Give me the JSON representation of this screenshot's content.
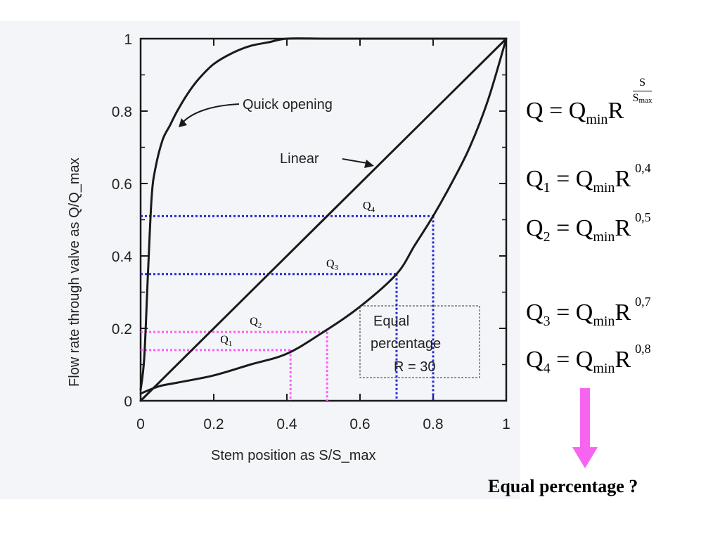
{
  "chart_data": {
    "type": "line",
    "xlabel": "Stem position as S/S_max",
    "ylabel": "Flow rate through valve as Q/Q_max",
    "xlim": [
      0,
      1
    ],
    "ylim": [
      0,
      1
    ],
    "x_ticks": [
      "0",
      "0.2",
      "0.4",
      "0.6",
      "0.8",
      "1"
    ],
    "y_ticks": [
      "0",
      "0.2",
      "0.4",
      "0.6",
      "0.8",
      "1"
    ],
    "grid": false,
    "series": [
      {
        "name": "Quick opening",
        "x": [
          0,
          0.01,
          0.02,
          0.03,
          0.04,
          0.06,
          0.08,
          0.1,
          0.13,
          0.16,
          0.2,
          0.25,
          0.3,
          0.35,
          0.4,
          0.5,
          0.6,
          0.8,
          1.0
        ],
        "y": [
          0.03,
          0.12,
          0.35,
          0.56,
          0.64,
          0.72,
          0.76,
          0.8,
          0.85,
          0.89,
          0.93,
          0.96,
          0.98,
          0.99,
          1.0,
          1.0,
          1.0,
          1.0,
          1.0
        ]
      },
      {
        "name": "Linear",
        "x": [
          0,
          1
        ],
        "y": [
          0,
          1
        ]
      },
      {
        "name": "Equal percentage R = 30",
        "x": [
          0,
          0.05,
          0.1,
          0.2,
          0.3,
          0.4,
          0.5,
          0.6,
          0.7,
          0.75,
          0.8,
          0.85,
          0.9,
          0.95,
          1.0
        ],
        "y": [
          0.02,
          0.04,
          0.05,
          0.07,
          0.1,
          0.13,
          0.19,
          0.26,
          0.35,
          0.43,
          0.51,
          0.6,
          0.7,
          0.83,
          1.0
        ]
      }
    ],
    "series_labels": {
      "quick": "Quick opening",
      "linear": "Linear",
      "equal_l1": "Equal",
      "equal_l2": "percentage",
      "equal_l3": "R = 30"
    },
    "markers": [
      {
        "label": "Q",
        "sub": "1",
        "x": 0.41,
        "y": 0.14,
        "color": "#ff5ef5"
      },
      {
        "label": "Q",
        "sub": "2",
        "x": 0.51,
        "y": 0.19,
        "color": "#ff5ef5"
      },
      {
        "label": "Q",
        "sub": "3",
        "x": 0.7,
        "y": 0.35,
        "color": "#2a2ad6"
      },
      {
        "label": "Q",
        "sub": "4",
        "x": 0.8,
        "y": 0.51,
        "color": "#2a2ad6"
      }
    ]
  },
  "formulas": {
    "general": {
      "lhs": "Q",
      "eq": "=",
      "base": "Q",
      "base_sub": "min",
      "r": "R",
      "exp_num": "S",
      "exp_den": "S",
      "exp_den_sub": "max"
    },
    "q1": {
      "lhs": "Q",
      "lhs_sub": "1",
      "eq": "=",
      "base": "Q",
      "base_sub": "min",
      "r": "R",
      "exp": "0,4"
    },
    "q2": {
      "lhs": "Q",
      "lhs_sub": "2",
      "eq": "=",
      "base": "Q",
      "base_sub": "min",
      "r": "R",
      "exp": "0,5"
    },
    "q3": {
      "lhs": "Q",
      "lhs_sub": "3",
      "eq": "=",
      "base": "Q",
      "base_sub": "min",
      "r": "R",
      "exp": "0,7"
    },
    "q4": {
      "lhs": "Q",
      "lhs_sub": "4",
      "eq": "=",
      "base": "Q",
      "base_sub": "min",
      "r": "R",
      "exp": "0,8"
    }
  },
  "caption": "Equal percentage ?",
  "colors": {
    "pink": "#ff5ef5",
    "blue": "#2a2ad6",
    "ink": "#1a1a1a",
    "arrow": "#f765f0"
  }
}
